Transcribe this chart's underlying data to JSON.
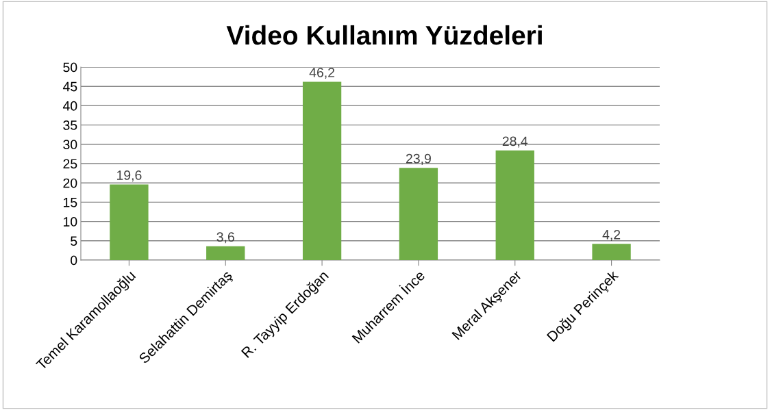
{
  "chart_data": {
    "type": "bar",
    "title": "Video Kullanım Yüzdeleri",
    "categories": [
      "Temel Karamollaoğlu",
      "Selahattin Demirtaş",
      "R. Tayyip Erdoğan",
      "Muharrem İnce",
      "Meral Akşener",
      "Doğu Perinçek"
    ],
    "values": [
      19.6,
      3.6,
      46.2,
      23.9,
      28.4,
      4.2
    ],
    "value_labels": [
      "19,6",
      "3,6",
      "46,2",
      "23,9",
      "28,4",
      "4,2"
    ],
    "color": "#70ad47",
    "ylim": [
      0,
      50
    ],
    "yticks": [
      0,
      5,
      10,
      15,
      20,
      25,
      30,
      35,
      40,
      45,
      50
    ],
    "grid": "y",
    "legend": false
  }
}
